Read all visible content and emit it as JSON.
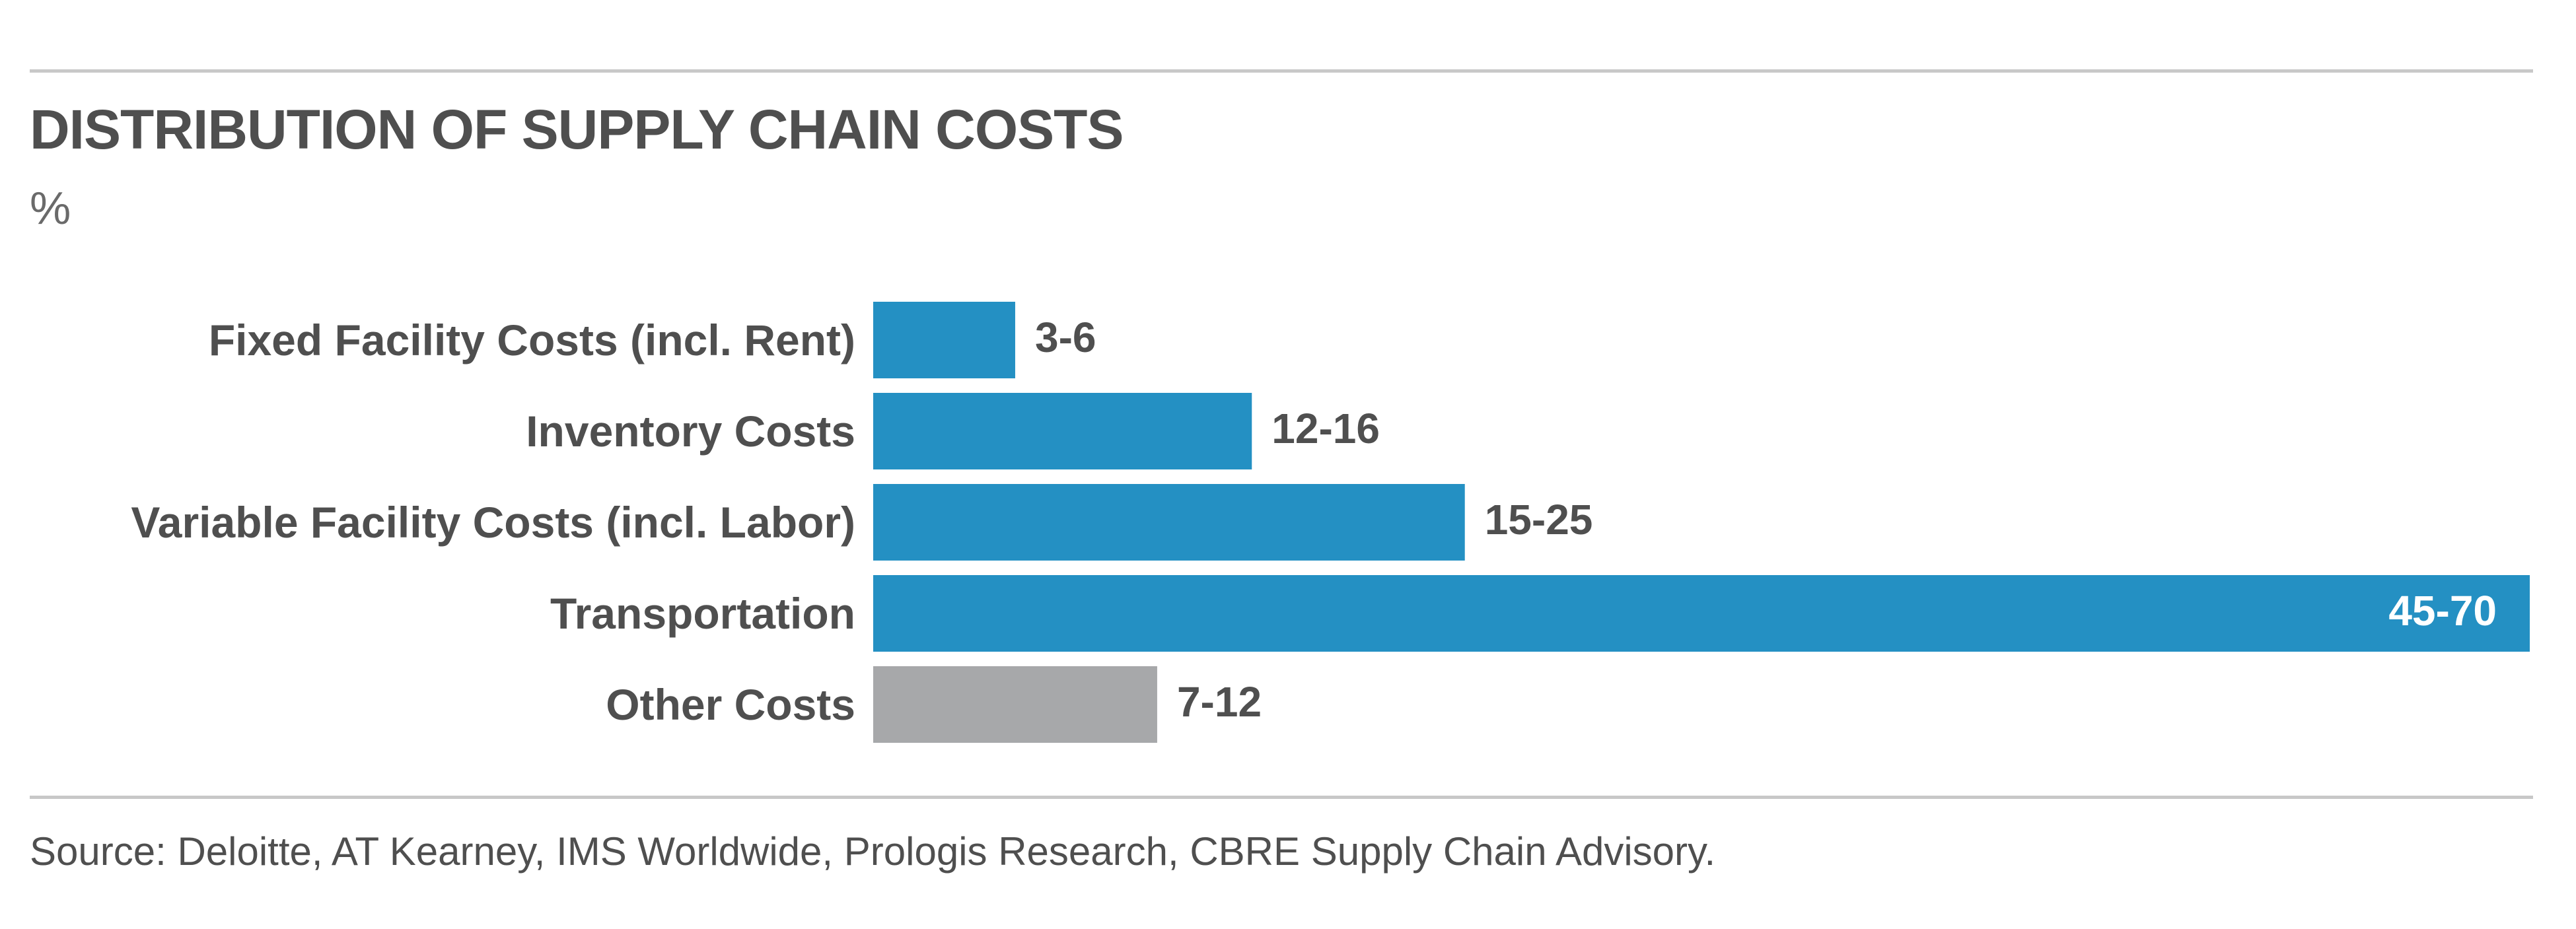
{
  "header": {
    "title": "DISTRIBUTION OF SUPPLY CHAIN COSTS",
    "unit": "%"
  },
  "footer": {
    "source": "Source: Deloitte, AT Kearney, IMS Worldwide, Prologis Research, CBRE Supply Chain Advisory."
  },
  "colors": {
    "primary": "#2490c3",
    "other": "#a7a8aa",
    "label_text": "#4f4f4f",
    "inside_label_text": "#ffffff"
  },
  "chart_data": {
    "type": "bar",
    "orientation": "horizontal",
    "title": "DISTRIBUTION OF SUPPLY CHAIN COSTS",
    "unit": "%",
    "categories": [
      "Fixed Facility Costs (incl. Rent)",
      "Inventory Costs",
      "Variable Facility Costs (incl. Labor)",
      "Transportation",
      "Other Costs"
    ],
    "ranges": [
      [
        3,
        6
      ],
      [
        12,
        16
      ],
      [
        15,
        25
      ],
      [
        45,
        70
      ],
      [
        7,
        12
      ]
    ],
    "data_labels": [
      "3-6",
      "12-16",
      "15-25",
      "45-70",
      "7-12"
    ],
    "bar_values": [
      6,
      16,
      25,
      70,
      12
    ],
    "xlim": [
      0,
      70
    ],
    "grid": false,
    "legend": "none"
  }
}
